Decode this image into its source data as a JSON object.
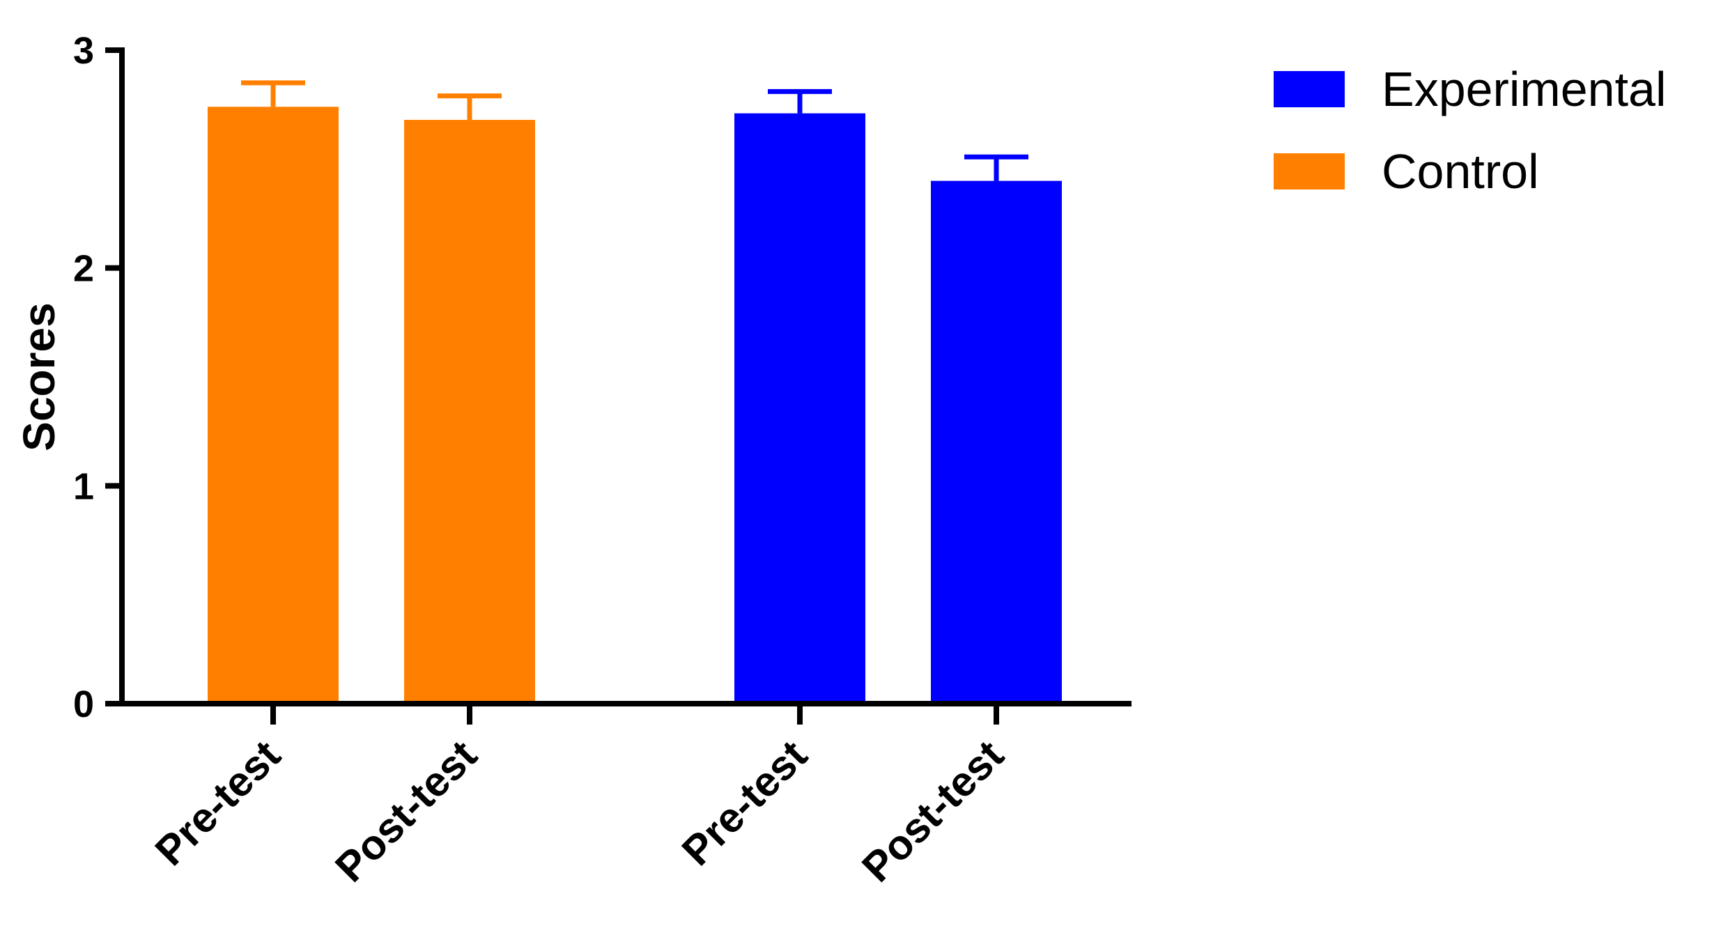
{
  "chart_data": {
    "type": "bar",
    "title": "",
    "xlabel": "",
    "ylabel": "Scores",
    "ylim": [
      0,
      3
    ],
    "yticks": [
      0,
      1,
      2,
      3
    ],
    "grid": false,
    "legend_position": "top-right",
    "legend": [
      {
        "name": "Experimental",
        "color": "#0000ff"
      },
      {
        "name": "Control",
        "color": "#ff8000"
      }
    ],
    "bars": [
      {
        "label": "Pre-test",
        "series": "Control",
        "value": 2.74,
        "error": 0.11,
        "color": "#ff8000"
      },
      {
        "label": "Post-test",
        "series": "Control",
        "value": 2.68,
        "error": 0.11,
        "color": "#ff8000"
      },
      {
        "label": "Pre-test",
        "series": "Experimental",
        "value": 2.71,
        "error": 0.1,
        "color": "#0000ff"
      },
      {
        "label": "Post-test",
        "series": "Experimental",
        "value": 2.4,
        "error": 0.11,
        "color": "#0000ff"
      }
    ]
  }
}
